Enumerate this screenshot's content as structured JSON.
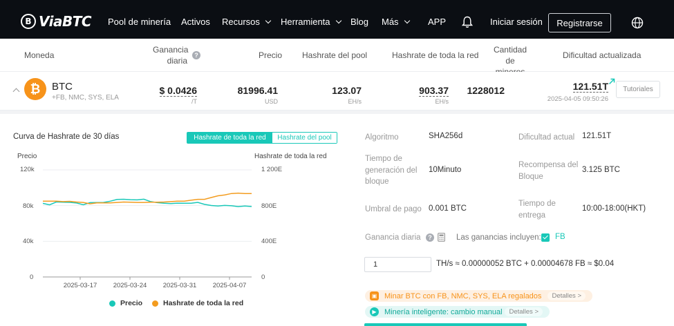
{
  "nav": {
    "logo": "ViaBTC",
    "items": [
      {
        "label": "Pool de minería",
        "dropdown": false
      },
      {
        "label": "Activos",
        "dropdown": false
      },
      {
        "label": "Recursos",
        "dropdown": true
      },
      {
        "label": "Herramienta",
        "dropdown": true
      },
      {
        "label": "Blog",
        "dropdown": false
      },
      {
        "label": "Más",
        "dropdown": true
      },
      {
        "label": "APP",
        "dropdown": false
      }
    ],
    "login": "Iniciar sesión",
    "register": "Registrarse"
  },
  "table_header": {
    "coin": "Moneda",
    "daily_profit_1": "Ganancia",
    "daily_profit_2": "diaria",
    "price": "Precio",
    "pool_hashrate": "Hashrate del pool",
    "network_hashrate": "Hashrate de toda la red",
    "miners_1": "Cantidad de",
    "miners_2": "mineros",
    "difficulty": "Dificultad actualizada"
  },
  "coin_row": {
    "symbol": "BTC",
    "merged": "+FB, NMC, SYS, ELA",
    "profit": "$ 0.0426",
    "profit_unit": "/T",
    "price": "81996.41",
    "price_unit": "USD",
    "pool_hashrate": "123.07",
    "pool_hashrate_unit": "EH/s",
    "network_hashrate": "903.37",
    "network_hashrate_unit": "EH/s",
    "miners": "1228012",
    "difficulty": "121.51T",
    "difficulty_time": "2025-04-05 09:50:26",
    "tutorials": "Tutoriales"
  },
  "chart_panel": {
    "title": "Curva de Hashrate de 30 días",
    "toggle_active": "Hashrate de toda la red",
    "toggle_inactive": "Hashrate del pool"
  },
  "chart_data": {
    "type": "line",
    "left_axis_label": "Precio",
    "right_axis_label": "Hashrate de toda la red",
    "left_ticks": [
      "120k",
      "80k",
      "40k",
      "0"
    ],
    "right_ticks": [
      "1 200E",
      "800E",
      "400E",
      "0"
    ],
    "left_ylim": [
      0,
      120000
    ],
    "right_ylim": [
      0,
      1200
    ],
    "x_ticks": [
      "2025-03-17",
      "2025-03-24",
      "2025-03-31",
      "2025-04-07"
    ],
    "series": [
      {
        "name": "Precio",
        "axis": "left",
        "color": "#19c8b8",
        "values": [
          82500,
          80800,
          84100,
          83800,
          83600,
          82900,
          80900,
          83300,
          83400,
          83500,
          84900,
          86900,
          87100,
          86600,
          86400,
          87200,
          84500,
          83300,
          82600,
          82300,
          82800,
          82600,
          82700,
          83600,
          81400,
          80100,
          79600,
          80200,
          79800,
          78900,
          79600,
          79000
        ]
      },
      {
        "name": "Hashrate de toda la red",
        "axis": "right",
        "color": "#f39c1f",
        "values": [
          850,
          850,
          850,
          845,
          848,
          840,
          835,
          820,
          830,
          830,
          830,
          835,
          840,
          838,
          835,
          835,
          838,
          838,
          840,
          845,
          850,
          850,
          860,
          870,
          870,
          890,
          910,
          920,
          935,
          940,
          935,
          935
        ]
      }
    ]
  },
  "info": {
    "algorithm_label": "Algoritmo",
    "algorithm": "SHA256d",
    "block_time_label_1": "Tiempo de",
    "block_time_label_2": "generación del",
    "block_time_label_3": "bloque",
    "block_time": "10Minuto",
    "min_payout_label": "Umbral de pago",
    "min_payout": "0.001 BTC",
    "current_difficulty_label": "Dificultad actual",
    "current_difficulty": "121.51T",
    "block_reward_label_1": "Recompensa del",
    "block_reward_label_2": "Bloque",
    "block_reward": "3.125 BTC",
    "delivery_label_1": "Tiempo de",
    "delivery_label_2": "entrega",
    "delivery": "10:00-18:00(HKT)",
    "daily_gain_label": "Ganancia diaria",
    "includes_label": "Las ganancias incluyen:",
    "includes_coin": "FB",
    "calc_input": "1",
    "calc_result": "TH/s ≈ 0.00000052 BTC + 0.00004678 FB ≈ $0.04"
  },
  "promos": [
    {
      "text": "Minar BTC con FB, NMC, SYS, ELA regalados",
      "link": "Detalles >"
    },
    {
      "text": "Minería inteligente: cambio manual",
      "link": "Detalles >"
    }
  ]
}
